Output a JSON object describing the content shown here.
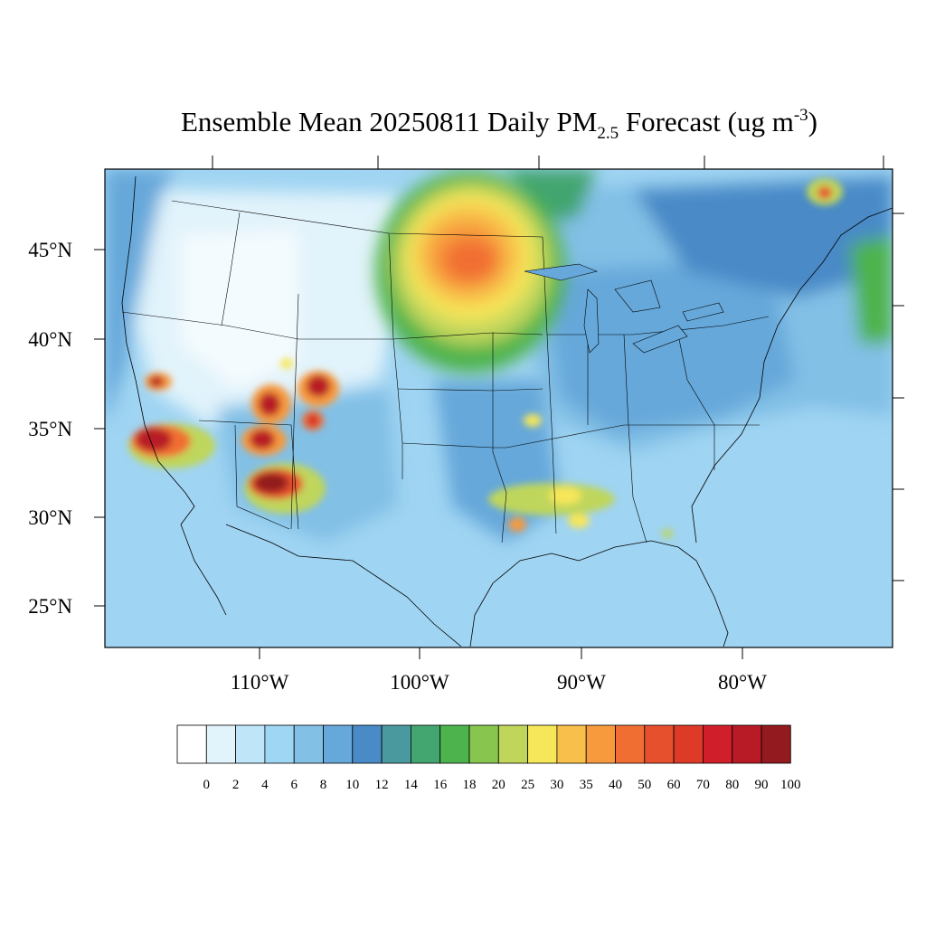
{
  "title": {
    "prefix": "Ensemble Mean 20250811 Daily PM",
    "subscript": "2.5",
    "middle": " Forecast (ug m",
    "superscript": "-3",
    "suffix": ")"
  },
  "map": {
    "lat_labels": [
      "45°N",
      "40°N",
      "35°N",
      "30°N",
      "25°N"
    ],
    "lon_labels": [
      "110°W",
      "100°W",
      "90°W",
      "80°W"
    ],
    "background_color": "#9fd4f2",
    "hotspots": [
      {
        "name": "upper-midwest-plume",
        "level": "40-50"
      },
      {
        "name": "southern-california-fire",
        "level": "90-100"
      },
      {
        "name": "arizona-fire",
        "level": "90-100"
      },
      {
        "name": "utah-fire",
        "level": "90-100"
      },
      {
        "name": "colorado-fire",
        "level": "90-100"
      },
      {
        "name": "new-mexico-fire",
        "level": "70-80"
      },
      {
        "name": "quebec-fire",
        "level": "50-60"
      },
      {
        "name": "louisiana-mississippi-patches",
        "level": "25-35"
      }
    ]
  },
  "colorbar": {
    "labels": [
      "0",
      "2",
      "4",
      "6",
      "8",
      "10",
      "12",
      "14",
      "16",
      "18",
      "20",
      "25",
      "30",
      "35",
      "40",
      "50",
      "60",
      "70",
      "80",
      "90",
      "100"
    ],
    "colors": [
      "#ffffff",
      "#e1f3fb",
      "#bfe6f8",
      "#9ed6f3",
      "#82c0e6",
      "#66a8da",
      "#4a8ac7",
      "#49999e",
      "#43a56f",
      "#4db34c",
      "#87c54f",
      "#bfd65b",
      "#f6e65a",
      "#f8c04a",
      "#f79a3e",
      "#f16e33",
      "#e6502d",
      "#de3a28",
      "#d01f2a",
      "#b81a26",
      "#931a1e"
    ]
  }
}
